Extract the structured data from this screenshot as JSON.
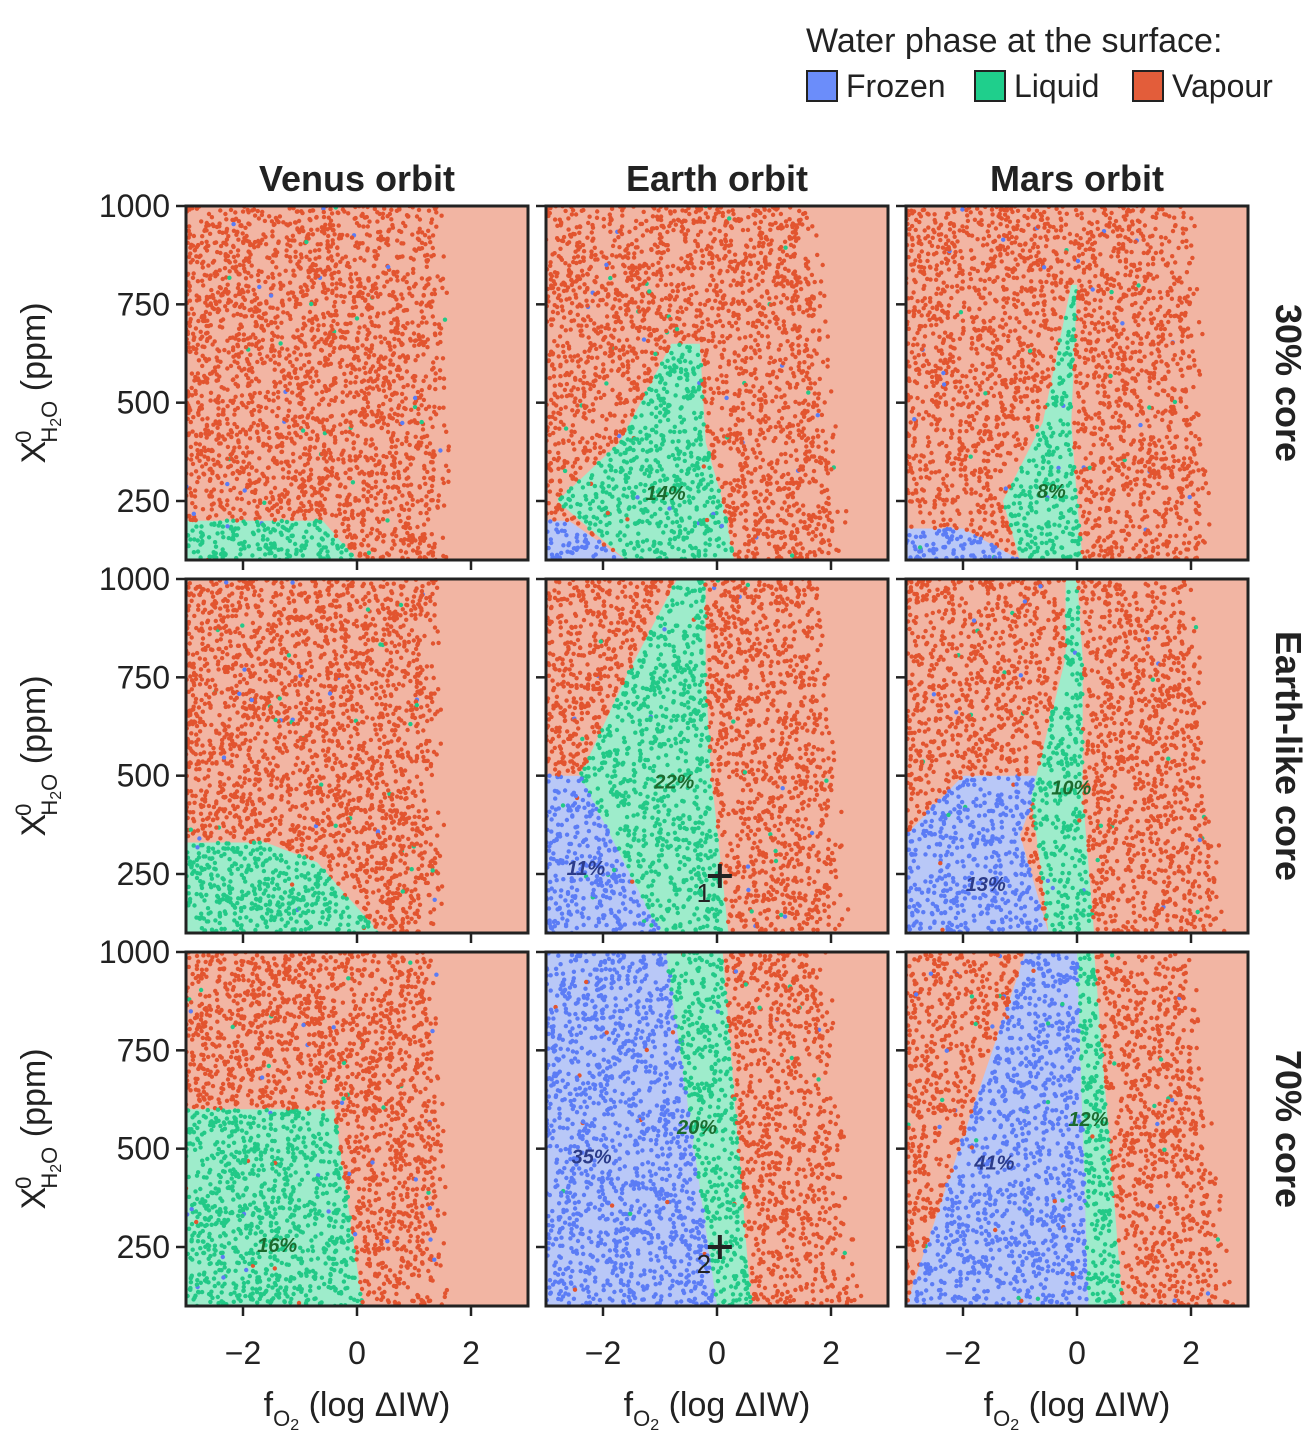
{
  "legend": {
    "title": "Water phase at the surface:",
    "items": [
      {
        "label": "Frozen",
        "color": "#6b8dfa"
      },
      {
        "label": "Liquid",
        "color": "#1fcf8c"
      },
      {
        "label": "Vapour",
        "color": "#e35d3a"
      }
    ]
  },
  "colors": {
    "frozen_fill": "#b9c8f7",
    "liquid_fill": "#9eeccb",
    "vapour_fill": "#f2b5a3",
    "frozen_dot": "#5b7cf5",
    "liquid_dot": "#22c987",
    "vapour_dot": "#e2542f"
  },
  "chart_data": {
    "type": "scatter",
    "description_columns": [
      "Venus orbit",
      "Earth orbit",
      "Mars orbit"
    ],
    "column_titles": [
      "Venus orbit",
      "Earth orbit",
      "Mars orbit"
    ],
    "row_titles": [
      "30% core",
      "Earth-like core",
      "70% core"
    ],
    "xlabel": "f",
    "xlabel_sub": "O",
    "xlabel_sub2": "2",
    "xlabel_rest": " (log ΔIW)",
    "ylabel": "X",
    "ylabel_sup": "0",
    "ylabel_sub": "H",
    "ylabel_sub2": "2",
    "ylabel_sub3": "O",
    "ylabel_rest": " (ppm)",
    "xlim": [
      -3,
      3
    ],
    "ylim": [
      100,
      1000
    ],
    "xticks": [
      -2,
      0,
      2
    ],
    "xtick_labels": [
      "−2",
      "0",
      "2"
    ],
    "yticks": [
      250,
      500,
      750,
      1000
    ],
    "ytick_labels": [
      "250",
      "500",
      "750",
      "1000"
    ],
    "panels": [
      {
        "row": 0,
        "col": 0,
        "vapour_edge": [
          [
            100,
            1.5
          ],
          [
            1000,
            1.4
          ]
        ],
        "frozen": null,
        "liquid": [
          [
            100,
            -3,
            0.0
          ],
          [
            200,
            -3,
            -0.6
          ]
        ],
        "annotations": []
      },
      {
        "row": 0,
        "col": 1,
        "vapour_edge": [
          [
            100,
            2.2
          ],
          [
            1000,
            1.6
          ]
        ],
        "frozen": [
          [
            100,
            -3,
            -1.6
          ],
          [
            200,
            -3,
            -2.6
          ]
        ],
        "liquid": [
          [
            100,
            -1.6,
            0.3
          ],
          [
            250,
            -2.8,
            0.1
          ],
          [
            400,
            -1.7,
            -0.2
          ],
          [
            650,
            -0.8,
            -0.3
          ]
        ],
        "annotations": [
          {
            "text": "14%",
            "x": -0.9,
            "y": 270,
            "phase": "liquid"
          }
        ]
      },
      {
        "row": 0,
        "col": 2,
        "vapour_edge": [
          [
            100,
            2.3
          ],
          [
            1000,
            1.9
          ]
        ],
        "frozen": [
          [
            100,
            -3,
            -1.0
          ],
          [
            180,
            -3,
            -2.0
          ]
        ],
        "liquid": [
          [
            100,
            -1.0,
            0.1
          ],
          [
            250,
            -1.3,
            0.0
          ],
          [
            450,
            -0.6,
            -0.1
          ],
          [
            800,
            -0.1,
            0.0
          ]
        ],
        "annotations": [
          {
            "text": "8%",
            "x": -0.45,
            "y": 275,
            "phase": "liquid"
          }
        ]
      },
      {
        "row": 1,
        "col": 0,
        "vapour_edge": [
          [
            100,
            1.4
          ],
          [
            1000,
            1.3
          ]
        ],
        "frozen": null,
        "liquid": [
          [
            100,
            -3,
            0.4
          ],
          [
            280,
            -3,
            -0.7
          ],
          [
            330,
            -3,
            -1.6
          ]
        ],
        "annotations": []
      },
      {
        "row": 1,
        "col": 1,
        "vapour_edge": [
          [
            100,
            2.2
          ],
          [
            1000,
            1.7
          ]
        ],
        "frozen": [
          [
            100,
            -3,
            -1.0
          ],
          [
            350,
            -3,
            -1.6
          ],
          [
            500,
            -3,
            -2.4
          ]
        ],
        "liquid": [
          [
            100,
            -1.0,
            0.2
          ],
          [
            500,
            -2.4,
            -0.1
          ],
          [
            750,
            -1.6,
            -0.2
          ],
          [
            1000,
            -0.7,
            -0.2
          ]
        ],
        "annotations": [
          {
            "text": "22%",
            "x": -0.75,
            "y": 485,
            "phase": "liquid"
          },
          {
            "text": "11%",
            "x": -2.3,
            "y": 265,
            "phase": "frozen"
          },
          {
            "marker": "+",
            "label": "1",
            "x": 0.05,
            "y": 245
          }
        ]
      },
      {
        "row": 1,
        "col": 2,
        "vapour_edge": [
          [
            100,
            2.5
          ],
          [
            1000,
            1.9
          ]
        ],
        "frozen": [
          [
            100,
            -3,
            -0.5
          ],
          [
            350,
            -3,
            -1.0
          ],
          [
            500,
            -2.0,
            -0.6
          ]
        ],
        "liquid": [
          [
            100,
            -0.5,
            0.3
          ],
          [
            450,
            -0.8,
            0.1
          ],
          [
            800,
            -0.2,
            0.1
          ],
          [
            1000,
            -0.2,
            0.0
          ]
        ],
        "annotations": [
          {
            "text": "10%",
            "x": -0.1,
            "y": 470,
            "phase": "liquid"
          },
          {
            "text": "13%",
            "x": -1.6,
            "y": 225,
            "phase": "frozen"
          }
        ]
      },
      {
        "row": 2,
        "col": 0,
        "vapour_edge": [
          [
            100,
            1.5
          ],
          [
            1000,
            1.3
          ]
        ],
        "frozen": null,
        "liquid": [
          [
            100,
            -3,
            0.1
          ],
          [
            600,
            -3,
            -0.4
          ]
        ],
        "annotations": [
          {
            "text": "16%",
            "x": -1.4,
            "y": 255,
            "phase": "liquid"
          }
        ]
      },
      {
        "row": 2,
        "col": 1,
        "vapour_edge": [
          [
            100,
            2.4
          ],
          [
            1000,
            1.8
          ]
        ],
        "frozen": [
          [
            100,
            -3,
            0.0
          ],
          [
            1000,
            -3,
            -0.9
          ]
        ],
        "liquid": [
          [
            100,
            0.0,
            0.6
          ],
          [
            1000,
            -0.9,
            0.1
          ]
        ],
        "annotations": [
          {
            "text": "20%",
            "x": -0.35,
            "y": 555,
            "phase": "liquid"
          },
          {
            "text": "35%",
            "x": -2.2,
            "y": 480,
            "phase": "frozen"
          },
          {
            "marker": "+",
            "label": "2",
            "x": 0.05,
            "y": 250
          }
        ]
      },
      {
        "row": 2,
        "col": 2,
        "vapour_edge": [
          [
            100,
            2.6
          ],
          [
            1000,
            1.9
          ]
        ],
        "frozen": [
          [
            100,
            -3,
            0.2
          ],
          [
            1000,
            -0.9,
            0.0
          ]
        ],
        "liquid": [
          [
            100,
            0.2,
            0.8
          ],
          [
            1000,
            0.0,
            0.3
          ]
        ],
        "annotations": [
          {
            "text": "12%",
            "x": 0.2,
            "y": 575,
            "phase": "liquid"
          },
          {
            "text": "41%",
            "x": -1.45,
            "y": 465,
            "phase": "frozen"
          }
        ]
      }
    ]
  }
}
